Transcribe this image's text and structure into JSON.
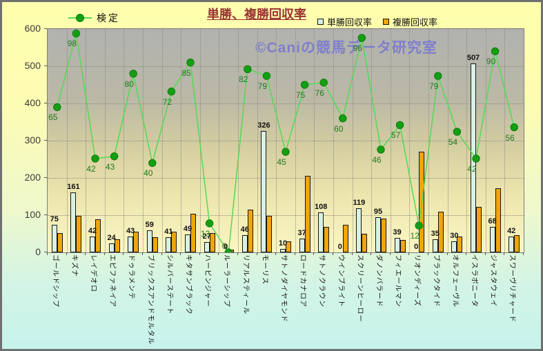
{
  "title": "単勝、複勝回収率",
  "legend": {
    "line_label": "検定",
    "tansho_label": "単勝回収率",
    "fukusho_label": "複勝回収率"
  },
  "watermark": "©Caniの競馬データ研究室",
  "colors": {
    "title": "#993333",
    "tansho_bar": "#d9f1e4",
    "fukusho_bar": "#f0a50a",
    "line": "#52da52",
    "marker": "#12a012",
    "line_label": "#1f7a1f",
    "plot_top": "#b1b1af",
    "plot_bottom": "#fbf6c3",
    "page_top": "#ffffae",
    "page_bottom": "#c7f3ec",
    "watermark": "#7b7bcd"
  },
  "chart_data": {
    "type": "bar",
    "title": "単勝、複勝回収率",
    "categories": [
      "ゴールドシップ",
      "キズナ",
      "レイデオロ",
      "エピファネイア",
      "ドゥラメンテ",
      "ブリックスアンドモルタル",
      "シルバーステート",
      "キタサンブラック",
      "ハービンジャー",
      "ルーラーシップ",
      "リアルスティール",
      "モーリス",
      "サトノダイヤモンド",
      "ロードカナロア",
      "サトノクラウン",
      "ウインブライト",
      "スクリーンヒーロー",
      "ダノンバラード",
      "フィエールマン",
      "リオンディーズ",
      "ブラックタイド",
      "オルフェーヴル",
      "イスラボニータ",
      "ジャスタウェイ",
      "スワーヴリチャード"
    ],
    "series": [
      {
        "name": "単勝回収率",
        "type": "bar",
        "labels_shown": true,
        "values": [
          75,
          161,
          42,
          24,
          43,
          59,
          41,
          49,
          27,
          0,
          46,
          326,
          10,
          37,
          108,
          0,
          119,
          95,
          39,
          0,
          35,
          30,
          507,
          68,
          42
        ]
      },
      {
        "name": "複勝回収率",
        "type": "bar",
        "labels_shown": false,
        "values": [
          52,
          98,
          88,
          35,
          55,
          40,
          55,
          103,
          52,
          8,
          115,
          98,
          29,
          205,
          68,
          75,
          50,
          90,
          33,
          270,
          110,
          43,
          123,
          173,
          46
        ]
      },
      {
        "name": "検定",
        "type": "line",
        "axis": "secondary",
        "labels_shown": true,
        "values": [
          65,
          98,
          42,
          43,
          80,
          40,
          72,
          85,
          13,
          0,
          82,
          79,
          45,
          75,
          76,
          60,
          96,
          46,
          57,
          12,
          79,
          54,
          42,
          90,
          56
        ]
      }
    ],
    "y_axis": {
      "min": 0,
      "max": 600,
      "tick_step": 100,
      "ticks": [
        0,
        100,
        200,
        300,
        400,
        500,
        600
      ]
    },
    "secondary_axis": {
      "min": 0,
      "max": 100,
      "visible": false
    },
    "grid": true,
    "legend_position": "top"
  }
}
